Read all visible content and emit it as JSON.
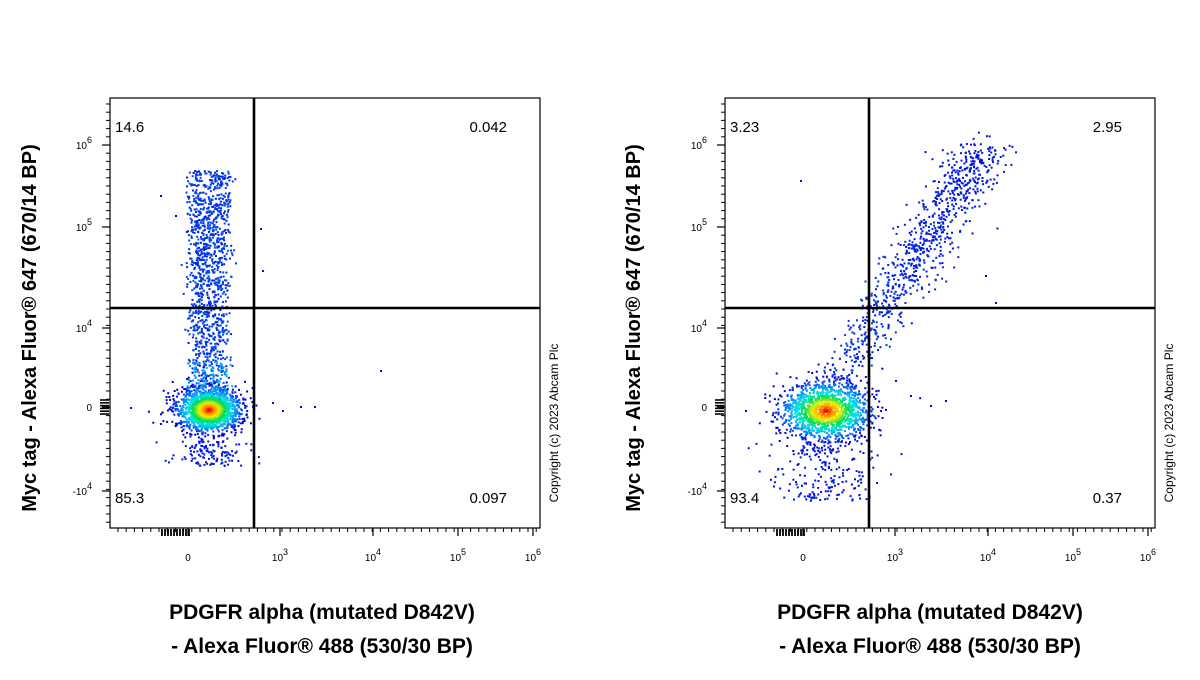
{
  "copyright": "Copyright (c) 2023 Abcam Plc",
  "colors": {
    "density_low": "#0000cc",
    "density_mid": "#00ffff",
    "density_high": "#ff0000",
    "axis": "#000000"
  },
  "chart_data": [
    {
      "type": "scatter",
      "subtype": "flow-cytometry-density-dot-plot",
      "xlabel": "PDGFR alpha (mutated D842V)",
      "xlabel_line2": "- Alexa Fluor® 488 (530/30 BP)",
      "ylabel": "Myc tag - Alexa Fluor® 647 (670/14 BP)",
      "x_scale": "biexponential",
      "y_scale": "biexponential",
      "x_ticks": [
        "0",
        "10^3",
        "10^4",
        "10^5",
        "10^6"
      ],
      "y_ticks": [
        "-10^4",
        "0",
        "10^4",
        "10^5",
        "10^6"
      ],
      "quadrant_gate": {
        "x": 700,
        "y": 15000
      },
      "quadrants": [
        {
          "name": "Q1",
          "position": "top-left",
          "label": "14.6"
        },
        {
          "name": "Q2",
          "position": "top-right",
          "label": "0.042"
        },
        {
          "name": "Q3",
          "position": "bottom-right",
          "label": "0.097"
        },
        {
          "name": "Q4",
          "position": "bottom-left",
          "label": "85.3"
        }
      ],
      "populations": [
        {
          "description": "negative cluster",
          "x_center": 150,
          "y_center": 0
        },
        {
          "description": "Myc-positive column",
          "x_center": 150,
          "y_range": [
            15000,
            600000
          ]
        }
      ]
    },
    {
      "type": "scatter",
      "subtype": "flow-cytometry-density-dot-plot",
      "xlabel": "PDGFR alpha (mutated D842V)",
      "xlabel_line2": "- Alexa Fluor® 488 (530/30 BP)",
      "ylabel": "Myc tag - Alexa Fluor® 647 (670/14 BP)",
      "x_scale": "biexponential",
      "y_scale": "biexponential",
      "x_ticks": [
        "0",
        "10^3",
        "10^4",
        "10^5",
        "10^6"
      ],
      "y_ticks": [
        "-10^4",
        "0",
        "10^4",
        "10^5",
        "10^6"
      ],
      "quadrant_gate": {
        "x": 700,
        "y": 15000
      },
      "quadrants": [
        {
          "name": "Q1",
          "position": "top-left",
          "label": "3.23"
        },
        {
          "name": "Q2",
          "position": "top-right",
          "label": "2.95"
        },
        {
          "name": "Q3",
          "position": "bottom-right",
          "label": "0.37"
        },
        {
          "name": "Q4",
          "position": "bottom-left",
          "label": "93.4"
        }
      ],
      "populations": [
        {
          "description": "negative cluster",
          "x_center": 120,
          "y_center": 0
        },
        {
          "description": "diagonal double-positive tail",
          "x_range": [
            200,
            10000
          ],
          "y_range": [
            3000,
            900000
          ]
        }
      ]
    }
  ]
}
